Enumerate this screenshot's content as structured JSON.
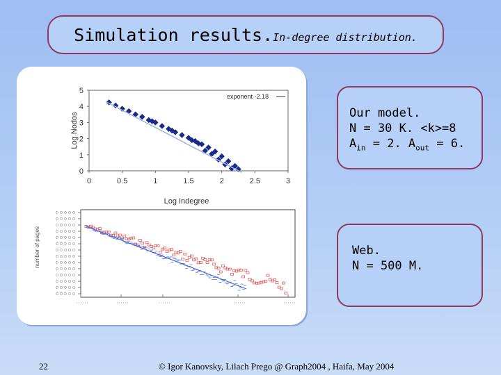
{
  "slide": {
    "title": "Simulation results.",
    "subtitle": "In-degree distribution.",
    "page_number": "22",
    "footer": "© Igor Kanovsky, Lilach Prego @ Graph2004 , Haifa, May 2004"
  },
  "box_model": {
    "line1": "Our model.",
    "line2": "N = 30 K. <k>=8",
    "line3_a": "A",
    "line3_a_sub": "in",
    "line3_mid": " = 2. A",
    "line3_b_sub": "out",
    "line3_end": " = 6."
  },
  "box_web": {
    "line1": "Web.",
    "line2": "N = 500 M."
  },
  "chart_data": [
    {
      "type": "scatter",
      "xlabel": "Log Indegree",
      "ylabel": "Log Nodos",
      "legend": "exponent -2.18",
      "xlim": [
        0,
        3
      ],
      "ylim": [
        0,
        5
      ],
      "xticks": [
        "0",
        "0.5",
        "1",
        "1.5",
        "2",
        "2.5",
        "3"
      ],
      "yticks": [
        "0",
        "1",
        "2",
        "3",
        "4",
        "5"
      ],
      "fit_line": {
        "x": [
          0.25,
          2.3
        ],
        "y": [
          4.3,
          -0.1
        ]
      },
      "points": [
        [
          0.3,
          4.25
        ],
        [
          0.4,
          4.05
        ],
        [
          0.5,
          3.85
        ],
        [
          0.6,
          3.7
        ],
        [
          0.7,
          3.5
        ],
        [
          0.8,
          3.35
        ],
        [
          0.9,
          3.15
        ],
        [
          1.0,
          3.0
        ],
        [
          1.1,
          2.78
        ],
        [
          1.2,
          2.6
        ],
        [
          1.3,
          2.4
        ],
        [
          1.4,
          2.22
        ],
        [
          1.5,
          2.05
        ],
        [
          1.6,
          1.85
        ],
        [
          1.7,
          1.65
        ],
        [
          1.8,
          1.45
        ],
        [
          1.9,
          1.2
        ],
        [
          2.0,
          0.9
        ],
        [
          2.1,
          0.6
        ],
        [
          2.2,
          0.3
        ],
        [
          2.25,
          0.1
        ],
        [
          1.75,
          1.25
        ],
        [
          1.85,
          1.05
        ],
        [
          1.95,
          0.7
        ],
        [
          2.05,
          0.4
        ],
        [
          2.15,
          0.15
        ],
        [
          1.55,
          1.9
        ],
        [
          1.65,
          1.7
        ],
        [
          1.25,
          2.5
        ],
        [
          0.95,
          3.08
        ]
      ]
    },
    {
      "type": "scatter",
      "ylabel": "number of pages",
      "legend": "",
      "series": [
        {
          "name": "",
          "color": "#e06060"
        },
        {
          "name": "",
          "color": "#6080e0"
        }
      ]
    }
  ]
}
